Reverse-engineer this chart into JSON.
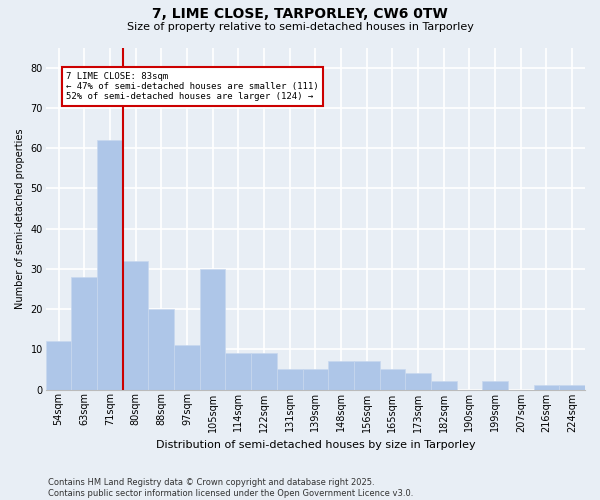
{
  "title": "7, LIME CLOSE, TARPORLEY, CW6 0TW",
  "subtitle": "Size of property relative to semi-detached houses in Tarporley",
  "xlabel": "Distribution of semi-detached houses by size in Tarporley",
  "ylabel": "Number of semi-detached properties",
  "footer": "Contains HM Land Registry data © Crown copyright and database right 2025.\nContains public sector information licensed under the Open Government Licence v3.0.",
  "categories": [
    "54sqm",
    "63sqm",
    "71sqm",
    "80sqm",
    "88sqm",
    "97sqm",
    "105sqm",
    "114sqm",
    "122sqm",
    "131sqm",
    "139sqm",
    "148sqm",
    "156sqm",
    "165sqm",
    "173sqm",
    "182sqm",
    "190sqm",
    "199sqm",
    "207sqm",
    "216sqm",
    "224sqm"
  ],
  "values": [
    12,
    28,
    62,
    32,
    20,
    11,
    30,
    9,
    9,
    5,
    5,
    7,
    7,
    5,
    4,
    2,
    0,
    2,
    0,
    1,
    1
  ],
  "bar_color": "#aec6e8",
  "bar_edge_color": "#c8d8ee",
  "property_line_x": 2.5,
  "pct_smaller": 47,
  "count_smaller": 111,
  "pct_larger": 52,
  "count_larger": 124,
  "annotation_label": "7 LIME CLOSE: 83sqm",
  "ylim": [
    0,
    85
  ],
  "yticks": [
    0,
    10,
    20,
    30,
    40,
    50,
    60,
    70,
    80
  ],
  "bg_color": "#e8eef5",
  "plot_bg_color": "#e8eef5",
  "grid_color": "#ffffff",
  "annotation_box_color": "#ffffff",
  "annotation_box_edge": "#cc0000",
  "red_line_color": "#cc0000",
  "title_fontsize": 10,
  "subtitle_fontsize": 8,
  "xlabel_fontsize": 8,
  "ylabel_fontsize": 7,
  "tick_fontsize": 7,
  "footer_fontsize": 6
}
